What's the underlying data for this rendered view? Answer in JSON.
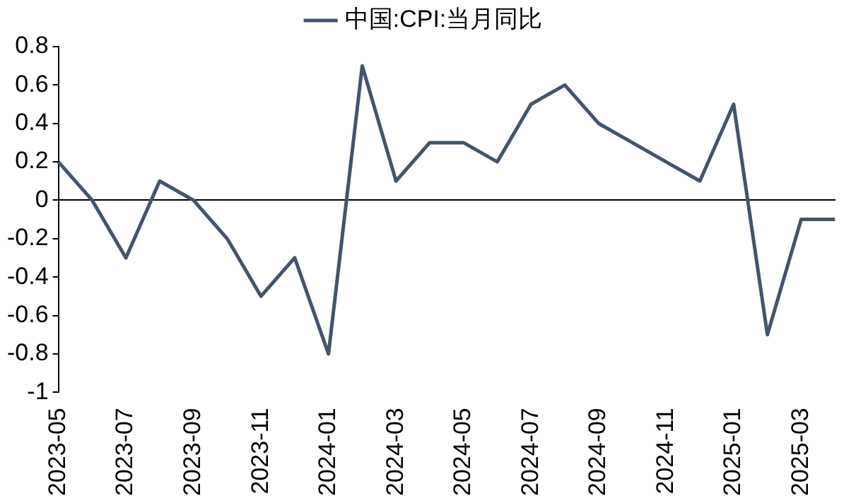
{
  "chart_data": {
    "type": "line",
    "categories": [
      "2023-05",
      null,
      "2023-07",
      null,
      "2023-09",
      null,
      "2023-11",
      null,
      "2024-01",
      null,
      "2024-03",
      null,
      "2024-05",
      null,
      "2024-07",
      null,
      "2024-09",
      null,
      "2024-11",
      null,
      "2025-01",
      null,
      "2025-03",
      null
    ],
    "series": [
      {
        "name": "中国:CPI:当月同比",
        "color": "#44546a",
        "values": [
          0.2,
          0.0,
          -0.3,
          0.1,
          0.0,
          -0.2,
          -0.5,
          -0.3,
          -0.8,
          0.7,
          0.1,
          0.3,
          0.3,
          0.2,
          0.5,
          0.6,
          0.4,
          0.3,
          0.2,
          0.1,
          0.5,
          -0.7,
          -0.1,
          -0.1
        ]
      }
    ],
    "ylim": [
      -1,
      0.8
    ],
    "yticks": [
      -1,
      -0.8,
      -0.6,
      -0.4,
      -0.2,
      0,
      0.2,
      0.4,
      0.6,
      0.8
    ],
    "legend": "top",
    "marker": "none",
    "line_style": "solid"
  }
}
